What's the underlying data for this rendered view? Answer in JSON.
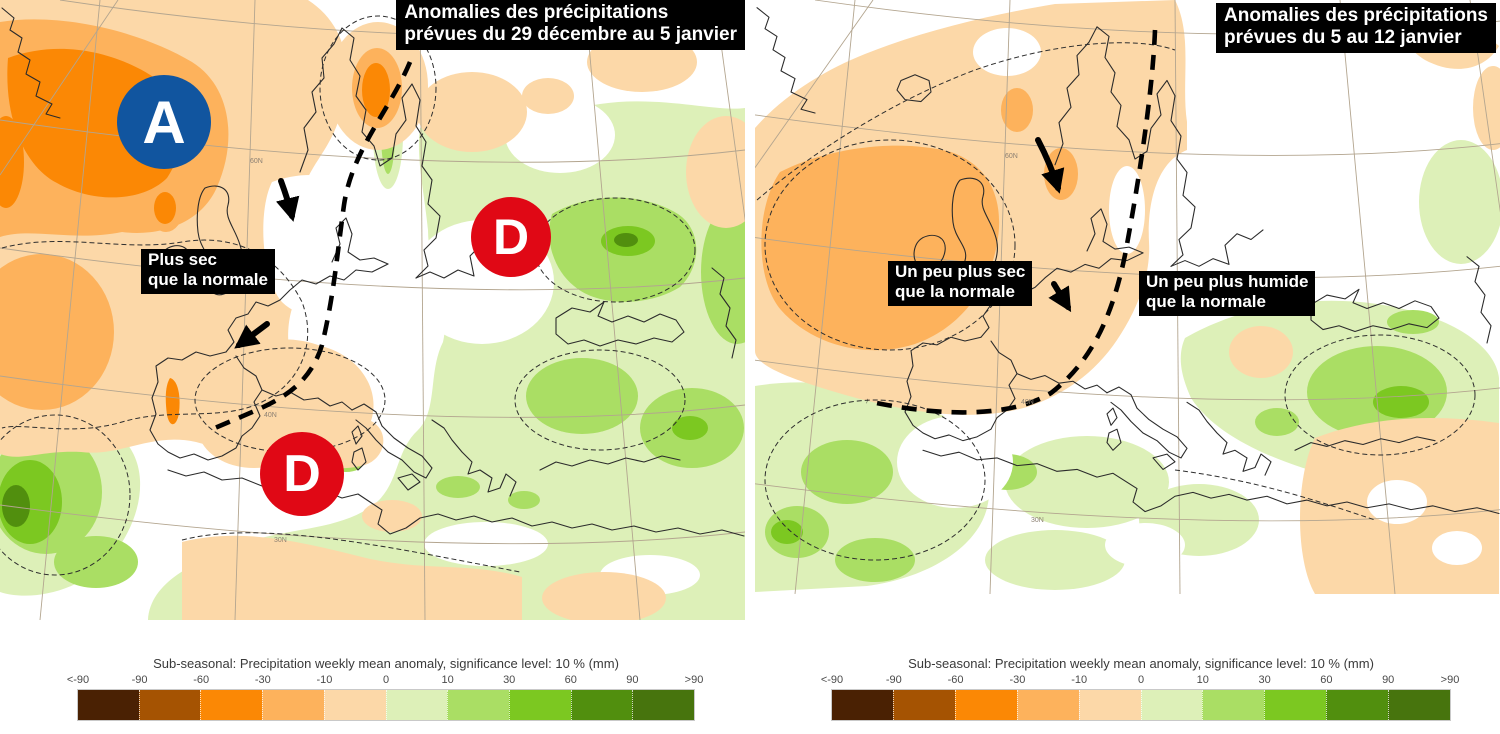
{
  "palette": {
    "orange_strong": "#fb8805",
    "orange_mid": "#fdb25c",
    "orange_pale": "#fcd8a8",
    "green_pale": "#ddf0b8",
    "green_light": "#aade64",
    "green_mid": "#7cc821",
    "green_dark": "#518f0e",
    "high_badge": "#11559f",
    "low_badge": "#e00815",
    "annotation_bg": "#000000",
    "annotation_text": "#ffffff",
    "coast": "#2b2b2b",
    "graticule": "#b3a58f"
  },
  "maps": {
    "graticule_labels": [
      "60N",
      "50N",
      "40N",
      "30N"
    ],
    "left": {
      "title_line1": "Anomalies des précipitations",
      "title_line2": "prévues du 29 décembre au 5 janvier",
      "high_symbol": "A",
      "low_symbol": "D",
      "label": {
        "line1": "Plus sec",
        "line2": "que la normale"
      }
    },
    "right": {
      "title_line1": "Anomalies des précipitations",
      "title_line2": "prévues du 5 au 12 janvier",
      "label_sec": {
        "line1": "Un peu plus sec",
        "line2": "que la normale"
      },
      "label_humide": {
        "line1": "Un peu plus humide",
        "line2": "que la normale"
      }
    }
  },
  "colorbar": {
    "title": "Sub-seasonal: Precipitation weekly mean anomaly, significance level: 10 % (mm)",
    "tick_labels": [
      "<-90",
      "-90",
      "-60",
      "-30",
      "-10",
      "0",
      "10",
      "30",
      "60",
      "90",
      ">90"
    ],
    "colors": [
      "#4a2103",
      "#a55302",
      "#fb8805",
      "#fdb25c",
      "#fcd8a8",
      "#ddf0b8",
      "#aade64",
      "#7cc821",
      "#518f0e",
      "#47740d"
    ]
  }
}
